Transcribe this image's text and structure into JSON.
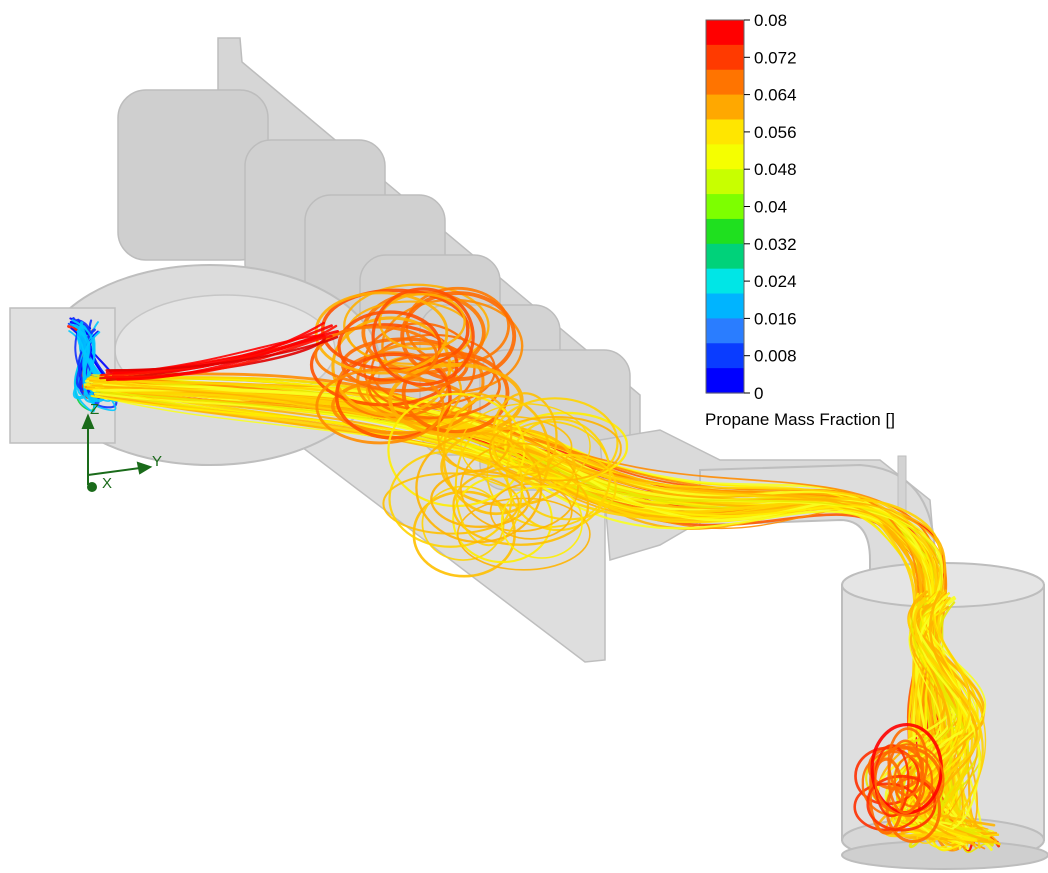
{
  "legend": {
    "title": "Propane Mass Fraction []",
    "ticks": [
      "0.08",
      "0.072",
      "0.064",
      "0.056",
      "0.048",
      "0.04",
      "0.032",
      "0.024",
      "0.016",
      "0.008",
      "0"
    ],
    "band_colors": [
      "#ff0000",
      "#ff3a00",
      "#ff7400",
      "#ffa800",
      "#ffe600",
      "#f5ff00",
      "#c8ff00",
      "#7dff00",
      "#1fe01f",
      "#00d27a",
      "#00e6e6",
      "#00b4ff",
      "#2a7dff",
      "#0a3cff",
      "#0000ff"
    ]
  },
  "axes": {
    "x_label": "X",
    "y_label": "Y",
    "z_label": "Z",
    "color": "#1a6b1a"
  },
  "geometry_colors": {
    "solid_fill": "#bdbdbd",
    "solid_dark": "#9a9a9a",
    "solid_edge": "#8a8a8a"
  },
  "streamline_palette": [
    "#ff0000",
    "#ff3000",
    "#ff6a00",
    "#ff8c00",
    "#ffb400",
    "#ffd400",
    "#ffee00",
    "#f8ff20",
    "#e8e800"
  ]
}
